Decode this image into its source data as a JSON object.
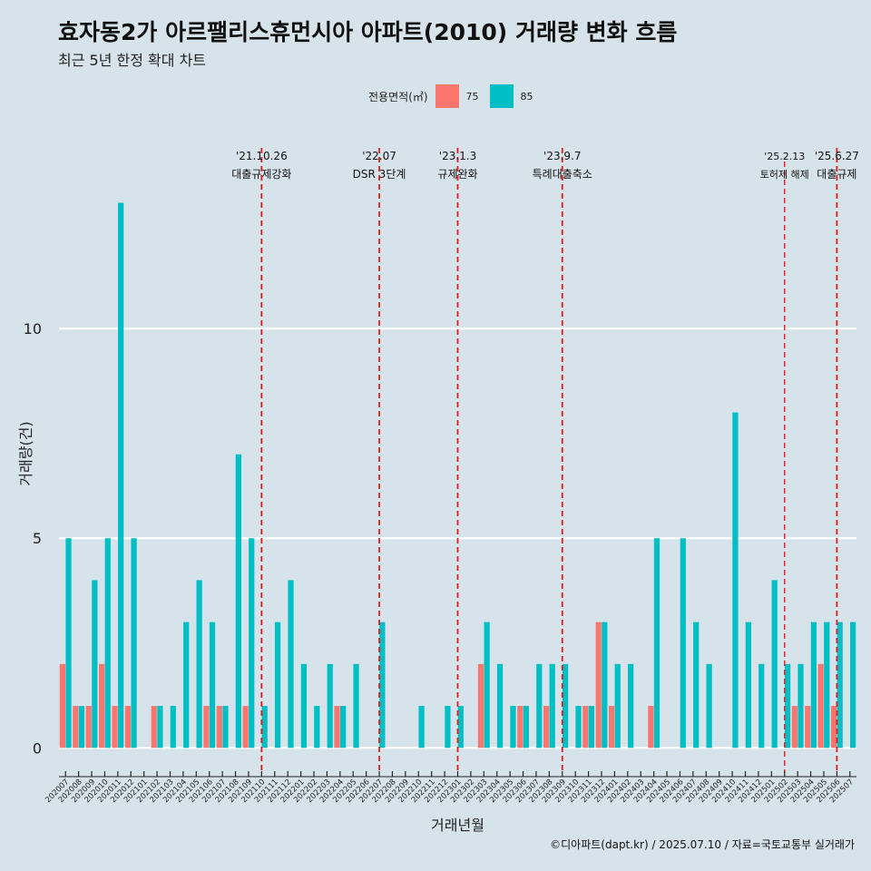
{
  "title": "효자동2가 아르팰리스휴먼시아 아파트(2010) 거래량 변화 흐름",
  "subtitle": "최근 5년 한정 확대 차트",
  "legend": {
    "title": "전용면적(㎡)"
  },
  "caption": "©디아파트(dapt.kr) / 2025.07.10 / 자료=국토교통부 실거래가",
  "colors": {
    "s75": "#f8766d",
    "s85": "#00bfc4",
    "event_line": "#e41a1c",
    "grid": "#ffffff",
    "background": "#d6e3ea"
  },
  "chart_data": {
    "type": "bar",
    "xlabel": "거래년월",
    "ylabel": "거래량(건)",
    "ylim": [
      -0.6,
      14.7
    ],
    "yticks": [
      0,
      5,
      10
    ],
    "categories": [
      "202007",
      "202008",
      "202009",
      "202010",
      "202011",
      "202012",
      "202101",
      "202102",
      "202103",
      "202104",
      "202105",
      "202106",
      "202107",
      "202108",
      "202109",
      "202110",
      "202111",
      "202112",
      "202201",
      "202202",
      "202203",
      "202204",
      "202205",
      "202206",
      "202207",
      "202208",
      "202209",
      "202210",
      "202211",
      "202212",
      "202301",
      "202302",
      "202303",
      "202304",
      "202305",
      "202306",
      "202307",
      "202308",
      "202309",
      "202310",
      "202311",
      "202312",
      "202401",
      "202402",
      "202403",
      "202404",
      "202405",
      "202406",
      "202407",
      "202408",
      "202409",
      "202410",
      "202411",
      "202412",
      "202501",
      "202502",
      "202503",
      "202504",
      "202505",
      "202506",
      "202507"
    ],
    "series": [
      {
        "name": "75",
        "values": [
          2,
          1,
          1,
          2,
          1,
          1,
          0,
          1,
          0,
          0,
          0,
          1,
          1,
          0,
          1,
          0,
          0,
          0,
          0,
          0,
          0,
          1,
          0,
          0,
          0,
          0,
          0,
          0,
          0,
          0,
          0,
          0,
          2,
          0,
          0,
          1,
          0,
          1,
          0,
          0,
          1,
          3,
          1,
          0,
          0,
          1,
          0,
          0,
          0,
          0,
          0,
          0,
          0,
          0,
          0,
          0,
          1,
          1,
          2,
          1,
          0
        ]
      },
      {
        "name": "85",
        "values": [
          5,
          1,
          4,
          5,
          13,
          5,
          0,
          1,
          1,
          3,
          4,
          3,
          1,
          7,
          5,
          1,
          3,
          4,
          2,
          1,
          2,
          1,
          2,
          0,
          3,
          0,
          0,
          1,
          0,
          1,
          1,
          0,
          3,
          2,
          1,
          1,
          2,
          2,
          2,
          1,
          1,
          3,
          2,
          2,
          0,
          5,
          0,
          5,
          3,
          2,
          0,
          8,
          3,
          2,
          4,
          2,
          2,
          3,
          3,
          3,
          3
        ]
      }
    ],
    "events": [
      {
        "x": 15.0,
        "date": "'21.10.26",
        "label": "대출규제강화",
        "style": "long"
      },
      {
        "x": 24.0,
        "date": "'22.07",
        "label": "DSR 3단계",
        "style": "long"
      },
      {
        "x": 30.0,
        "date": "'23.1.3",
        "label": "규제완화",
        "style": "long"
      },
      {
        "x": 38.0,
        "date": "'23.9.7",
        "label": "특례대출축소",
        "style": "long"
      },
      {
        "x": 55.0,
        "date": "'25.2.13",
        "label": "토허제 해제",
        "style": "short"
      },
      {
        "x": 59.0,
        "date": "'25.6.27",
        "label": "대출규제",
        "style": "long"
      }
    ]
  }
}
